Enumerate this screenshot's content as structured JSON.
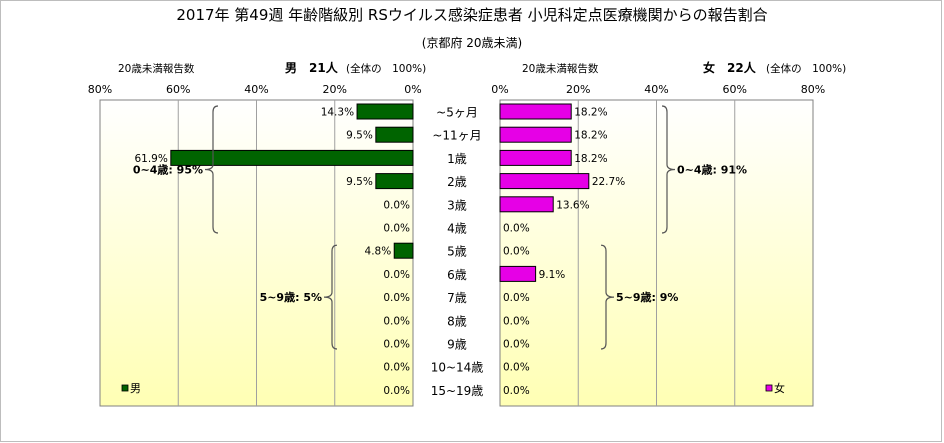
{
  "header": {
    "title": "2017年 第49週 年齢階級別 RSウイルス感染症患者 小児科定点医療機関からの報告割合",
    "subtitle": "(京都府 20歳未満)",
    "left_count_label": "20歳未満報告数",
    "left_group_label": "男　21人",
    "left_total_label": "(全体の　100%)",
    "right_count_label": "20歳未満報告数",
    "right_group_label": "女　22人",
    "right_total_label": "(全体の　100%)"
  },
  "chart_data": {
    "type": "bar",
    "orientation": "horizontal-butterfly",
    "categories": [
      "~5ヶ月",
      "~11ヶ月",
      "1歳",
      "2歳",
      "3歳",
      "4歳",
      "5歳",
      "6歳",
      "7歳",
      "8歳",
      "9歳",
      "10~14歳",
      "15~19歳"
    ],
    "series": [
      {
        "name": "男",
        "side": "left",
        "color": "#006400",
        "values": [
          14.3,
          9.5,
          61.9,
          9.5,
          0.0,
          0.0,
          4.8,
          0.0,
          0.0,
          0.0,
          0.0,
          0.0,
          0.0
        ],
        "labels": [
          "14.3%",
          "9.5%",
          "61.9%",
          "9.5%",
          "0.0%",
          "0.0%",
          "4.8%",
          "0.0%",
          "0.0%",
          "0.0%",
          "0.0%",
          "0.0%",
          "0.0%"
        ]
      },
      {
        "name": "女",
        "side": "right",
        "color": "#e600e6",
        "values": [
          18.2,
          18.2,
          18.2,
          22.7,
          13.6,
          0.0,
          0.0,
          9.1,
          0.0,
          0.0,
          0.0,
          0.0,
          0.0
        ],
        "labels": [
          "18.2%",
          "18.2%",
          "18.2%",
          "22.7%",
          "13.6%",
          "0.0%",
          "0.0%",
          "9.1%",
          "0.0%",
          "0.0%",
          "0.0%",
          "0.0%",
          "0.0%"
        ]
      }
    ],
    "left_axis": {
      "range": [
        80,
        0
      ],
      "ticks": [
        80,
        60,
        40,
        20,
        0
      ],
      "tick_labels": [
        "80%",
        "60%",
        "40%",
        "20%",
        "0%"
      ]
    },
    "right_axis": {
      "range": [
        0,
        80
      ],
      "ticks": [
        0,
        20,
        40,
        60,
        80
      ],
      "tick_labels": [
        "0%",
        "20%",
        "40%",
        "60%",
        "80%"
      ]
    },
    "grid": true,
    "background_gradient": [
      "#ffffff",
      "#ffffb4"
    ],
    "legend": [
      {
        "label": "男",
        "color": "#006400",
        "placement": "bottom-left"
      },
      {
        "label": "女",
        "color": "#e600e6",
        "placement": "bottom-right"
      }
    ],
    "annotations": [
      {
        "side": "left",
        "label": "0~4歳: 95%",
        "from": 0,
        "to": 5
      },
      {
        "side": "left",
        "label": "5~9歳: 5%",
        "from": 6,
        "to": 10
      },
      {
        "side": "right",
        "label": "0~4歳: 91%",
        "from": 0,
        "to": 5
      },
      {
        "side": "right",
        "label": "5~9歳: 9%",
        "from": 6,
        "to": 10
      }
    ]
  }
}
